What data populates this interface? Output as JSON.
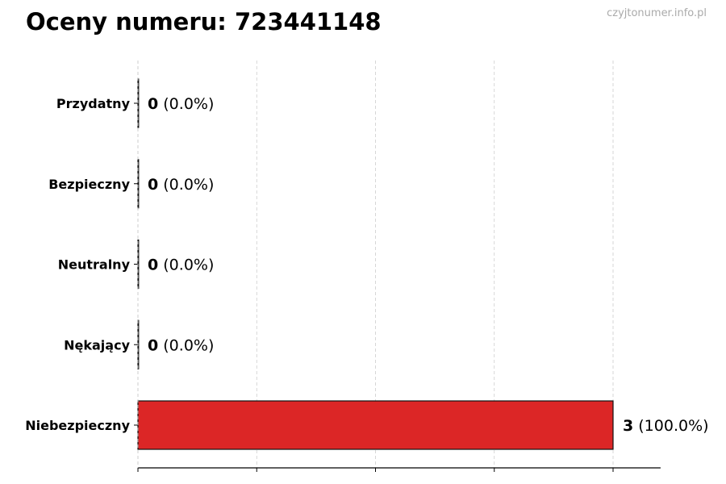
{
  "header": {
    "title": "Oceny numeru: 723441148",
    "watermark": "czyjtonumer.info.pl"
  },
  "chart_data": {
    "type": "bar",
    "orientation": "horizontal",
    "title": "Oceny numeru: 723441148",
    "categories": [
      "Przydatny",
      "Bezpieczny",
      "Neutralny",
      "Nękający",
      "Niebezpieczny"
    ],
    "values": [
      0,
      0,
      0,
      0,
      3
    ],
    "labels": [
      {
        "count": "0",
        "pct": "(0.0%)"
      },
      {
        "count": "0",
        "pct": "(0.0%)"
      },
      {
        "count": "0",
        "pct": "(0.0%)"
      },
      {
        "count": "0",
        "pct": "(0.0%)"
      },
      {
        "count": "3",
        "pct": "(100.0%)"
      }
    ],
    "colors": [
      "#4caf50",
      "#8bc34a",
      "#9e9e9e",
      "#ff9800",
      "#dc2626"
    ],
    "xlim": [
      0,
      3.3
    ],
    "xticks": [
      0,
      0.75,
      1.5,
      2.25,
      3
    ],
    "xtick_labels_shown": false,
    "grid": "vertical dashed",
    "xlabel": "",
    "ylabel": ""
  }
}
